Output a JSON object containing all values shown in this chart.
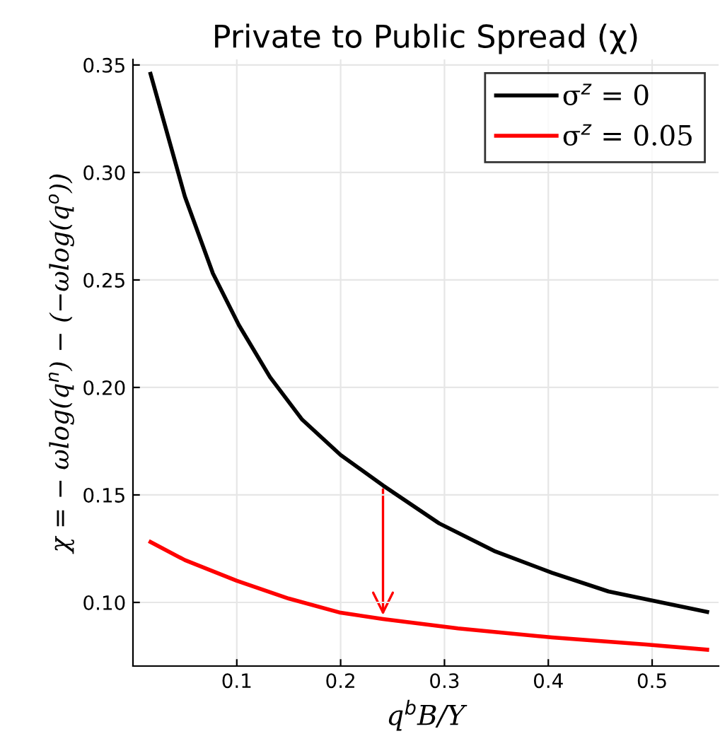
{
  "chart_data": {
    "type": "line",
    "title": "Private to Public Spread (χ)",
    "xlabel": "q$^{b}$B/Y",
    "ylabel": "χ = − ωlog(q$^{n}$) − (−ωlog(q$^{o}$))",
    "series": [
      {
        "name": "σ$^{z}$ = 0",
        "color": "#000000",
        "x": [
          0.0169,
          0.05,
          0.077,
          0.102,
          0.132,
          0.163,
          0.2,
          0.2408,
          0.2948,
          0.349,
          0.4036,
          0.458,
          0.553
        ],
        "values": [
          0.3459,
          0.2888,
          0.253,
          0.229,
          0.2048,
          0.185,
          0.1686,
          0.1544,
          0.1368,
          0.1237,
          0.1138,
          0.1051,
          0.0956
        ]
      },
      {
        "name": "σ$^{z}$ = 0.05",
        "color": "#ff0000",
        "x": [
          0.0169,
          0.05,
          0.1,
          0.15,
          0.2,
          0.2408,
          0.313,
          0.4036,
          0.494,
          0.553
        ],
        "values": [
          0.1281,
          0.1197,
          0.1101,
          0.1018,
          0.0952,
          0.0923,
          0.0879,
          0.0837,
          0.0804,
          0.078
        ]
      }
    ],
    "xlim": [
      0,
      0.564
    ],
    "ylim": [
      0.0704,
      0.3526
    ],
    "xticks": [
      0.1,
      0.2,
      0.3,
      0.4,
      0.5
    ],
    "yticks": [
      {
        "value": 0.1,
        "label": "0.10"
      },
      {
        "value": 0.15,
        "label": "0.15"
      },
      {
        "value": 0.2,
        "label": "0.20"
      },
      {
        "value": 0.25,
        "label": "0.25"
      },
      {
        "value": 0.3,
        "label": "0.30"
      },
      {
        "value": 0.35,
        "label": "0.35"
      }
    ],
    "grid": true,
    "legend": "top right",
    "line_style": "solid",
    "marker": "none"
  }
}
